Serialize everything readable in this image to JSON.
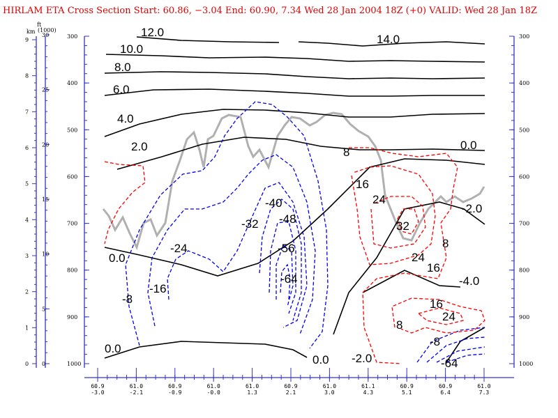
{
  "title": "HIRLAM ETA Cross Section Start: 60.86, −3.04 End: 60.90,  7.34 Wed 28 Jan 2004 18Z  (+0) VALID: Wed 28 Jan 18Z",
  "colors": {
    "title": "#e00000",
    "axis": "#3333cc",
    "isotherm": "#000000",
    "positive_contour": "#ff0000",
    "negative_contour": "#0000ee",
    "terrain_like": "#b0b0b0"
  },
  "chart_data": {
    "type": "contour-cross-section",
    "y_left_km_label": "km",
    "y_left_ft_label": "ft\n(1000)",
    "km_ticks": [
      "0",
      "1",
      "2",
      "3",
      "4",
      "5",
      "6",
      "7",
      "8",
      "9"
    ],
    "ft_ticks": [
      "0",
      "5",
      "10",
      "15",
      "20",
      "25",
      "30"
    ],
    "pressure_ticks": [
      "300",
      "400",
      "500",
      "600",
      "700",
      "800",
      "900",
      "1000"
    ],
    "x_ticks": [
      {
        "lat": "60.9",
        "lon": "-3.0"
      },
      {
        "lat": "61.0",
        "lon": "-2.1"
      },
      {
        "lat": "60.9",
        "lon": "-0.9"
      },
      {
        "lat": "61.0",
        "lon": "-0.0"
      },
      {
        "lat": "61.0",
        "lon": "1.3"
      },
      {
        "lat": "60.9",
        "lon": "2.1"
      },
      {
        "lat": "61.0",
        "lon": "3.0"
      },
      {
        "lat": "61.1",
        "lon": "4.3"
      },
      {
        "lat": "60.9",
        "lon": "5.1"
      },
      {
        "lat": "60.9",
        "lon": "6.4"
      },
      {
        "lat": "61.0",
        "lon": "7.3"
      }
    ],
    "isotherm_labels": [
      "12.0",
      "10.0",
      "8.0",
      "6.0",
      "4.0",
      "2.0",
      "0.0",
      "0.0",
      "0.0",
      "-2.0",
      "-4.0",
      "14.0",
      "0.0",
      "-2.0",
      "0.0"
    ],
    "contour_labels": [
      "-40",
      "-32",
      "-48",
      "-24",
      "-56",
      "-64",
      "-16",
      "-8",
      "8",
      "16",
      "24",
      "32",
      "8",
      "24",
      "16",
      "16",
      "24",
      "8",
      "-8",
      "-64"
    ],
    "legend": "none",
    "grid": false
  }
}
